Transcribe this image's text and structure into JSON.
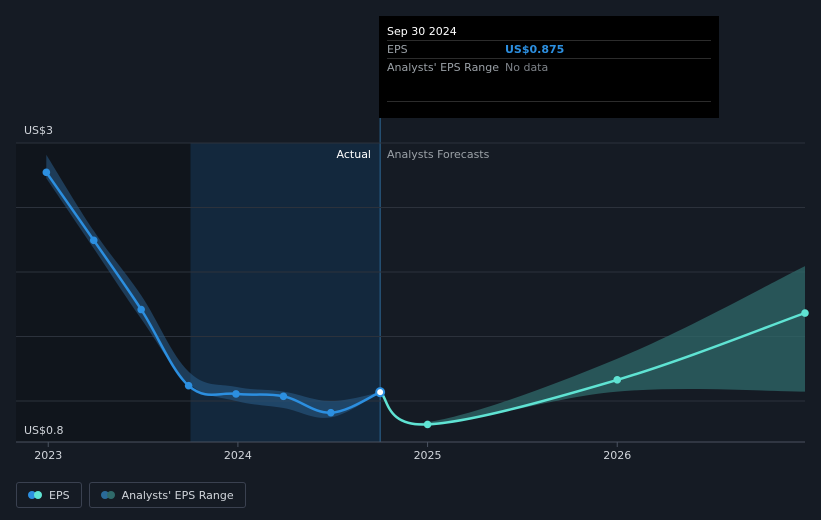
{
  "tooltip": {
    "date": "Sep 30 2024",
    "rows": [
      {
        "label": "EPS",
        "value": "US$0.875"
      },
      {
        "label": "Analysts' EPS Range",
        "value": "No data"
      }
    ]
  },
  "sections": {
    "actual": "Actual",
    "forecast": "Analysts Forecasts"
  },
  "legend": [
    {
      "label": "EPS",
      "colors": [
        "#2c8fe0",
        "#5fe3d3"
      ]
    },
    {
      "label": "Analysts' EPS Range",
      "colors": [
        "#2a6a99",
        "#2f6a6a"
      ]
    }
  ],
  "colors": {
    "eps_actual": "#2c8fe0",
    "eps_forecast": "#5fe3d3",
    "range_band": "#2f6a6a",
    "background": "#151b24"
  },
  "chart_data": {
    "type": "line",
    "y_axis_labels": [
      "US$3",
      "US$0.8"
    ],
    "ylim": [
      0.45,
      3.0
    ],
    "x_tick_labels": [
      "2023",
      "2024",
      "2025",
      "2026"
    ],
    "x_ticks": [
      2023.0,
      2024.0,
      2025.0,
      2026.0
    ],
    "xlim": [
      2022.83,
      2026.99
    ],
    "highlight_region": [
      2023.75,
      2024.75
    ],
    "series": [
      {
        "name": "EPS",
        "kind": "actual",
        "x": [
          2022.99,
          2023.24,
          2023.49,
          2023.74,
          2023.99,
          2024.24,
          2024.49,
          2024.75
        ],
        "y": [
          2.75,
          2.17,
          1.58,
          0.93,
          0.86,
          0.84,
          0.7,
          0.875
        ]
      },
      {
        "name": "EPS",
        "kind": "forecast",
        "x": [
          2024.75,
          2025.0,
          2026.0,
          2026.99
        ],
        "y": [
          0.875,
          0.6,
          0.98,
          1.55
        ]
      }
    ],
    "actual_band": {
      "x": [
        2022.99,
        2023.24,
        2023.49,
        2023.74,
        2023.99,
        2024.24,
        2024.49,
        2024.75
      ],
      "upper": [
        2.9,
        2.25,
        1.7,
        1.05,
        0.92,
        0.88,
        0.8,
        0.875
      ],
      "lower": [
        2.7,
        2.1,
        1.5,
        0.95,
        0.8,
        0.74,
        0.66,
        0.875
      ]
    },
    "forecast_band": {
      "x": [
        2024.75,
        2025.0,
        2026.0,
        2026.99
      ],
      "upper": [
        0.875,
        0.62,
        1.16,
        1.95
      ],
      "lower": [
        0.875,
        0.6,
        0.88,
        0.88
      ]
    }
  }
}
